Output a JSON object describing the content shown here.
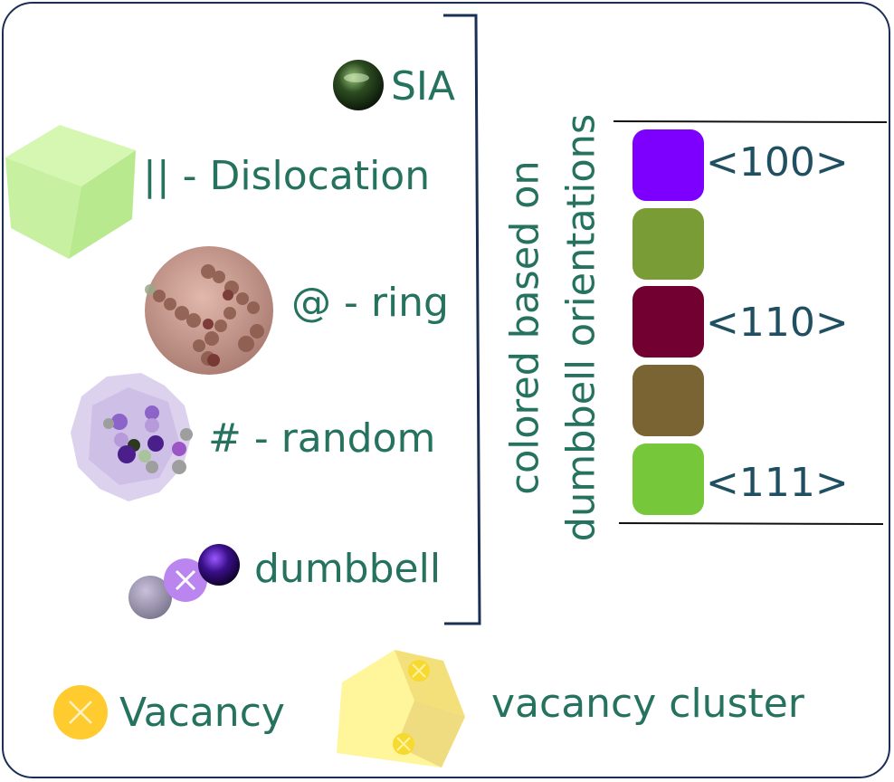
{
  "labels": {
    "sia": "SIA",
    "dislocation": "|| - Dislocation",
    "ring": "@ - ring",
    "random": "# - random",
    "dumbbell": "dumbbell",
    "vacancy": "Vacancy",
    "vacancy_cluster": "vacancy cluster"
  },
  "orientation_label": {
    "line1": "colored based on",
    "line2": "dumbbell orientations"
  },
  "orientations": {
    "o100": "<100>",
    "o110": "<110>",
    "o111": "<111>"
  },
  "swatch_colors": [
    "#7d00ff",
    "#7a9c36",
    "#720030",
    "#7a6433",
    "#77c73a"
  ],
  "colors": {
    "text": "#25725f",
    "code_text": "#1f4f60",
    "frame": "#1b2f55"
  }
}
